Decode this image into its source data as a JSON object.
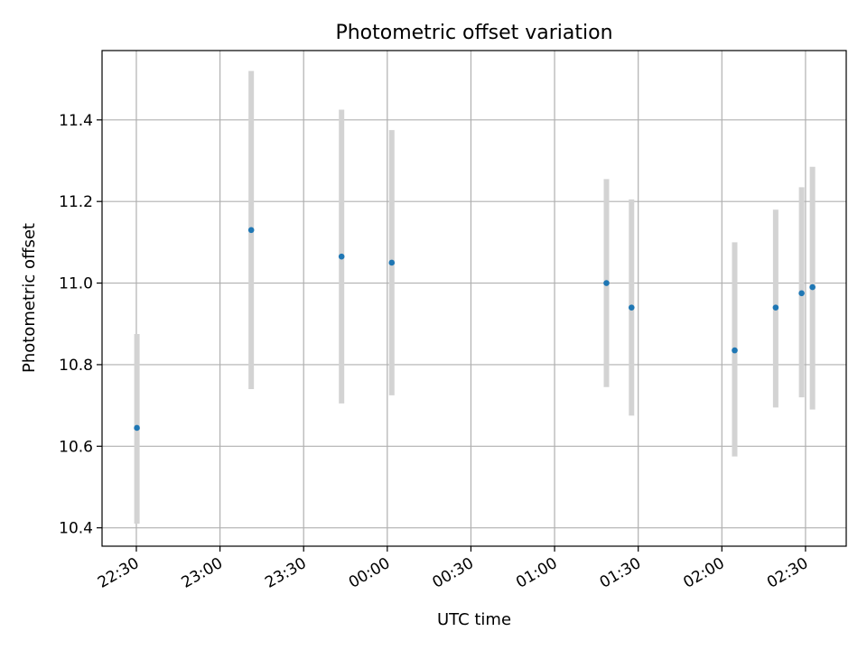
{
  "chart_data": {
    "type": "scatter",
    "title": "Photometric offset variation",
    "xlabel": "UTC time",
    "ylabel": "Photometric offset",
    "x_tick_labels": [
      "22:30",
      "23:00",
      "23:30",
      "00:00",
      "00:30",
      "01:00",
      "01:30",
      "02:00",
      "02:30"
    ],
    "y_tick_labels": [
      "10.4",
      "10.6",
      "10.8",
      "11.0",
      "11.2",
      "11.4"
    ],
    "y_ticks": [
      10.4,
      10.6,
      10.8,
      11.0,
      11.2,
      11.4
    ],
    "ylim": [
      10.355,
      11.57
    ],
    "xlim_minutes": [
      -12.3,
      254.6
    ],
    "grid": true,
    "colors": {
      "point": "#1f77b4",
      "errorbar": "#d3d3d3",
      "grid": "#b0b0b0"
    },
    "points": [
      {
        "t": 0.2,
        "y": 10.645,
        "ylow": 10.41,
        "yhigh": 10.875
      },
      {
        "t": 41.2,
        "y": 11.13,
        "ylow": 10.74,
        "yhigh": 11.52
      },
      {
        "t": 73.6,
        "y": 11.065,
        "ylow": 10.705,
        "yhigh": 11.425
      },
      {
        "t": 91.6,
        "y": 11.05,
        "ylow": 10.725,
        "yhigh": 11.375
      },
      {
        "t": 168.6,
        "y": 11.0,
        "ylow": 10.745,
        "yhigh": 11.255
      },
      {
        "t": 177.6,
        "y": 10.94,
        "ylow": 10.675,
        "yhigh": 11.205
      },
      {
        "t": 214.6,
        "y": 10.835,
        "ylow": 10.575,
        "yhigh": 11.1
      },
      {
        "t": 229.3,
        "y": 10.94,
        "ylow": 10.695,
        "yhigh": 11.18
      },
      {
        "t": 238.6,
        "y": 10.975,
        "ylow": 10.72,
        "yhigh": 11.235
      },
      {
        "t": 242.5,
        "y": 10.99,
        "ylow": 10.69,
        "yhigh": 11.285
      }
    ]
  }
}
